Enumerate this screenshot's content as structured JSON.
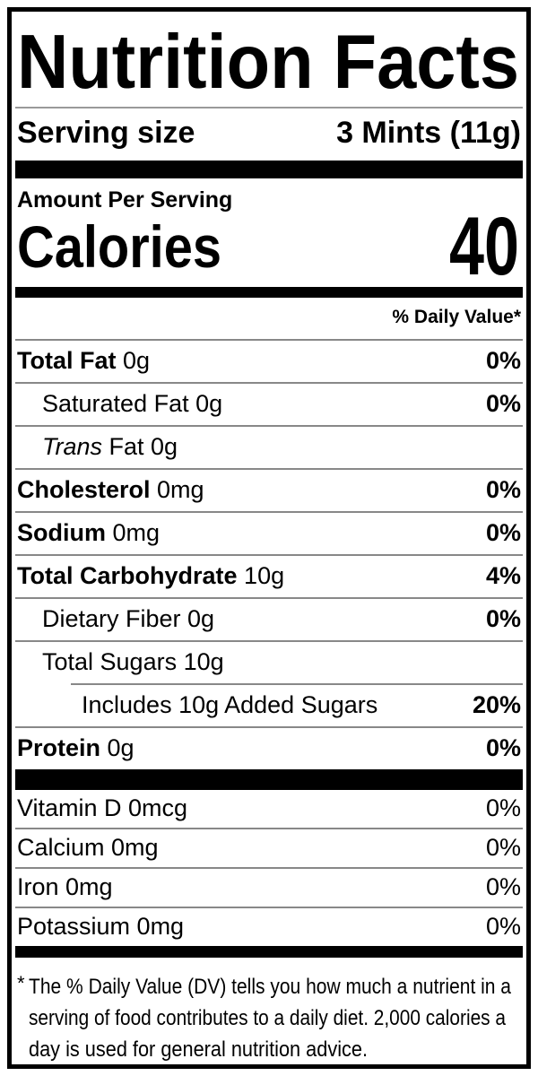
{
  "title": "Nutrition Facts",
  "serving": {
    "label": "Serving size",
    "value": "3 Mints (11g)"
  },
  "calories": {
    "heading": "Amount Per Serving",
    "label": "Calories",
    "value": "40"
  },
  "daily_value_header": "% Daily Value*",
  "rows": [
    {
      "bold": "Total Fat ",
      "rest": "0g",
      "pct": "0%"
    },
    {
      "rest": "Saturated Fat 0g",
      "pct": "0%"
    },
    {
      "italic": "Trans ",
      "rest": "Fat 0g",
      "pct": ""
    },
    {
      "bold": "Cholesterol ",
      "rest": "0mg",
      "pct": "0%"
    },
    {
      "bold": "Sodium ",
      "rest": "0mg",
      "pct": "0%"
    },
    {
      "bold": "Total Carbohydrate ",
      "rest": "10g",
      "pct": "4%"
    },
    {
      "rest": "Dietary Fiber 0g",
      "pct": "0%"
    },
    {
      "rest": "Total Sugars 10g",
      "pct": ""
    },
    {
      "rest": "Includes 10g Added Sugars",
      "pct": "20%"
    },
    {
      "bold": "Protein ",
      "rest": "0g",
      "pct": "0%"
    }
  ],
  "vitamins": [
    {
      "label": "Vitamin D 0mcg",
      "pct": "0%"
    },
    {
      "label": "Calcium 0mg",
      "pct": "0%"
    },
    {
      "label": "Iron 0mg",
      "pct": "0%"
    },
    {
      "label": "Potassium 0mg",
      "pct": "0%"
    }
  ],
  "footnote": {
    "star": "*",
    "lines": [
      "The % Daily Value (DV) tells you how much a nutrient in a",
      "serving of food contributes to a daily diet. 2,000 calories a",
      "day is used for general nutrition advice."
    ]
  },
  "colors": {
    "text": "#000000",
    "background": "#ffffff",
    "divider": "#888888"
  }
}
